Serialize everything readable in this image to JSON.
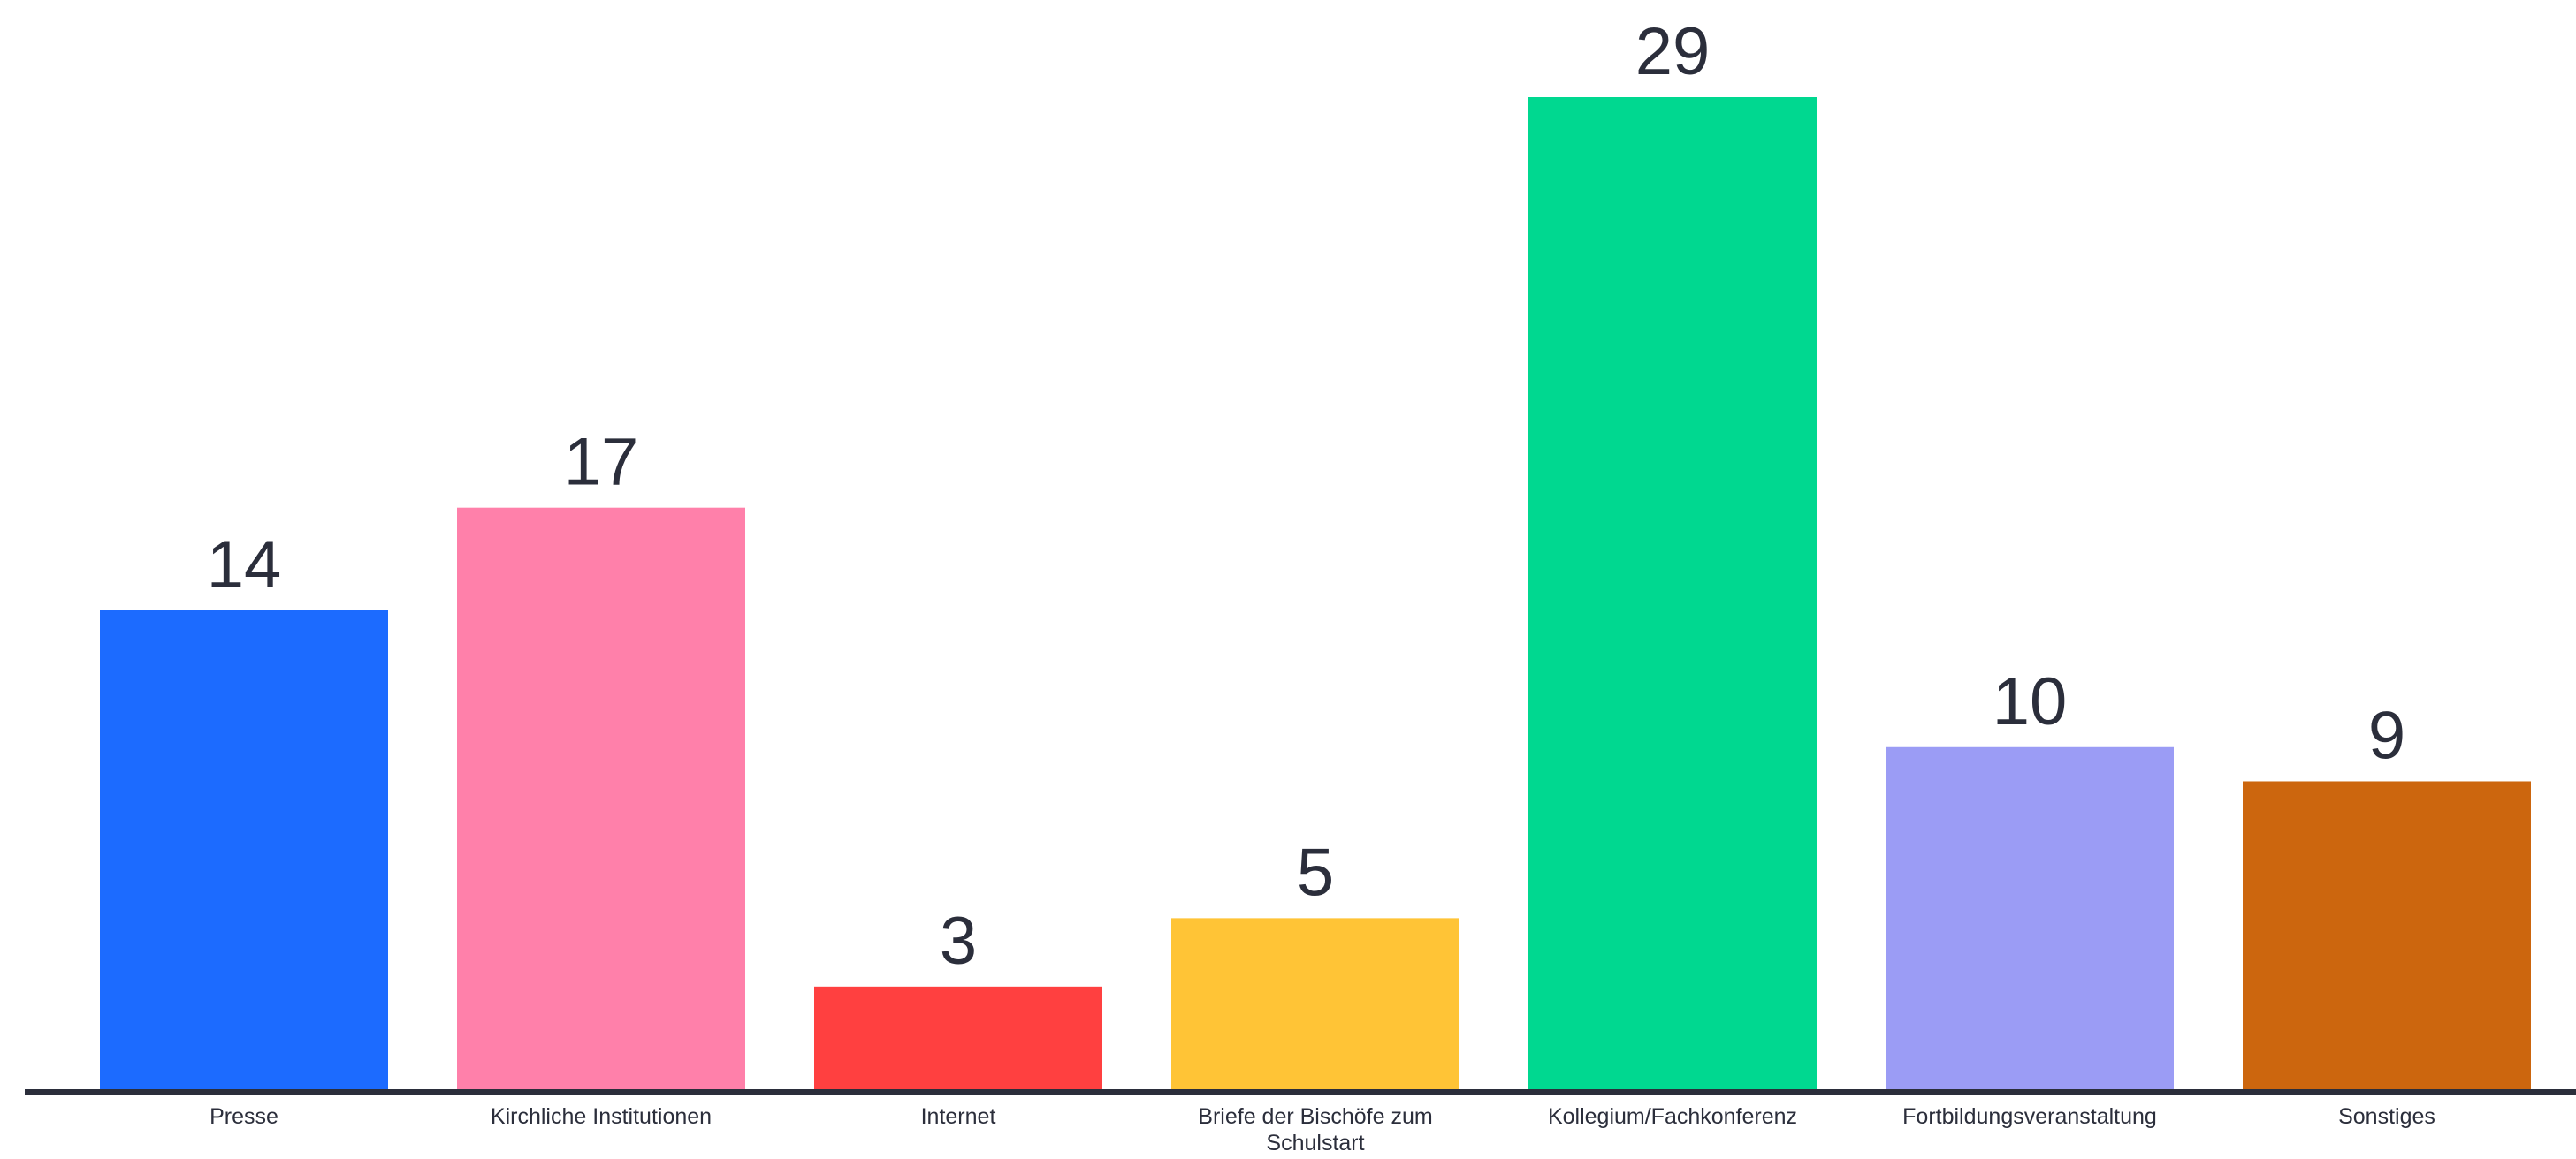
{
  "chart_data": {
    "type": "bar",
    "title": "",
    "xlabel": "",
    "ylabel": "",
    "ylim": [
      0,
      29
    ],
    "grid": false,
    "legend": "none",
    "categories": [
      [
        "Presse"
      ],
      [
        "Kirchliche Institutionen"
      ],
      [
        "Internet"
      ],
      [
        "Briefe der Bischöfe zum",
        "Schulstart"
      ],
      [
        "Kollegium/Fachkonferenz"
      ],
      [
        "Fortbildungsveranstaltung"
      ],
      [
        "Sonstiges"
      ]
    ],
    "values": [
      14,
      17,
      3,
      5,
      29,
      10,
      9
    ],
    "colors": [
      "#1c6bff",
      "#ff80aa",
      "#ff4040",
      "#ffc436",
      "#00d890",
      "#9b9cf5",
      "#cc660e"
    ],
    "axis_color": "#2b2e3b"
  }
}
